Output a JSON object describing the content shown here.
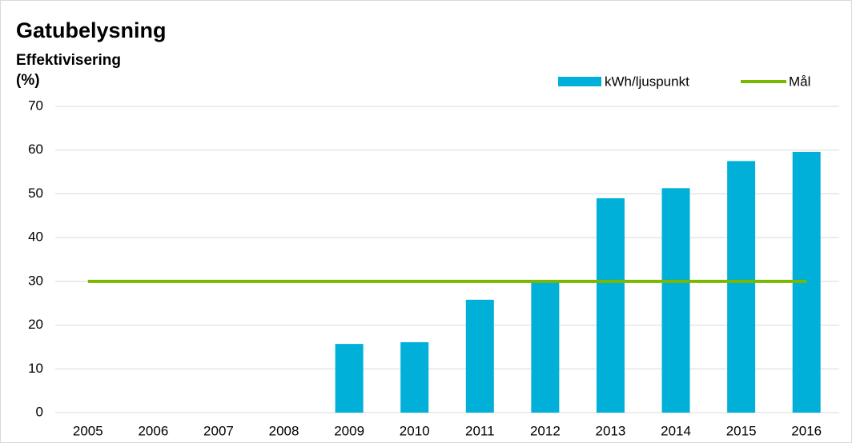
{
  "chart_data": {
    "type": "bar",
    "title": "Gatubelysning",
    "ylabel": "Effektivisering",
    "yunit": "(%)",
    "categories": [
      "2005",
      "2006",
      "2007",
      "2008",
      "2009",
      "2010",
      "2011",
      "2012",
      "2013",
      "2014",
      "2015",
      "2016"
    ],
    "series": [
      {
        "name": "kWh/ljuspunkt",
        "type": "bar",
        "color": "#00b0d8",
        "values": [
          null,
          null,
          null,
          null,
          15.7,
          16.1,
          25.8,
          29.8,
          49,
          51.3,
          57.5,
          59.6
        ]
      },
      {
        "name": "Mål",
        "type": "line",
        "color": "#7ab800",
        "values": [
          30,
          30,
          30,
          30,
          30,
          30,
          30,
          30,
          30,
          30,
          30,
          30
        ]
      }
    ],
    "ylim": [
      0,
      70
    ],
    "yticks": [
      0,
      10,
      20,
      30,
      40,
      50,
      60,
      70
    ],
    "grid": true,
    "legend": "top-right"
  }
}
